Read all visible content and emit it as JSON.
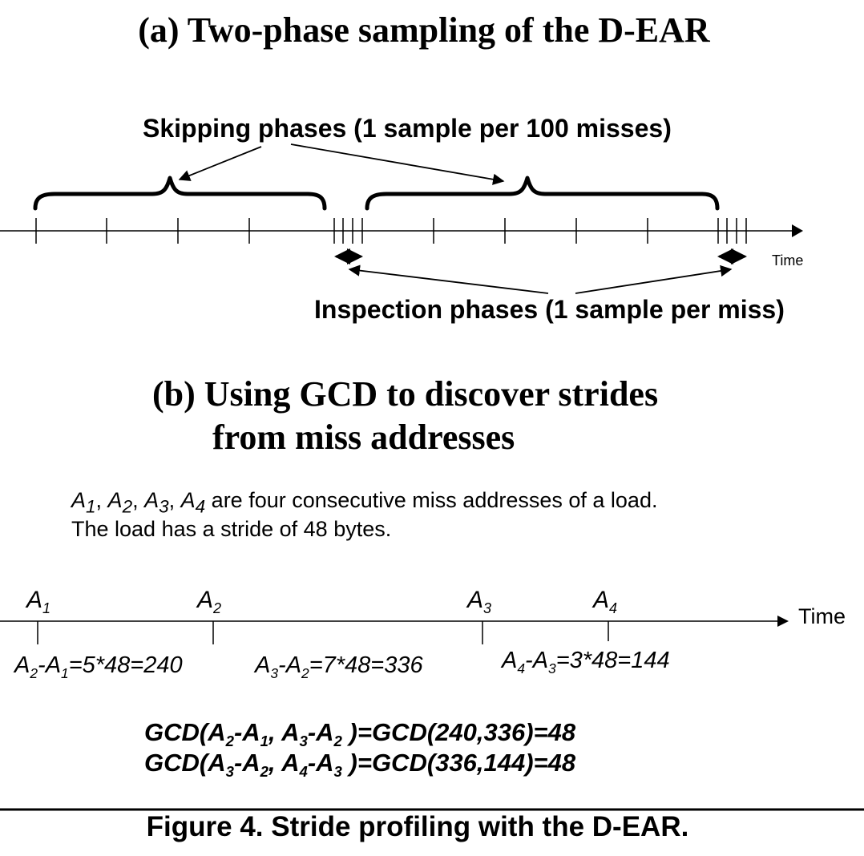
{
  "part_a": {
    "title": "(a) Two-phase sampling of the D-EAR",
    "skipping_label": "Skipping phases (1 sample per 100 misses)",
    "inspection_label": "Inspection phases (1 sample per miss)",
    "time_label": "Time"
  },
  "part_b": {
    "title_line1": "(b) Using GCD to discover strides",
    "title_line2": "from miss addresses",
    "description_line1_suffix": " are four consecutive miss addresses of a load.",
    "description_line2": "The load has a stride of 48 bytes.",
    "time_label": "Time",
    "addresses": [
      {
        "letter": "A",
        "sub": "1"
      },
      {
        "letter": "A",
        "sub": "2"
      },
      {
        "letter": "A",
        "sub": "3"
      },
      {
        "letter": "A",
        "sub": "4"
      }
    ],
    "differences": [
      {
        "value": "=5*48=240"
      },
      {
        "value": "=7*48=336"
      },
      {
        "value": "=3*48=144"
      }
    ],
    "gcd_lines": [
      {
        "result": ")=GCD(240,336)=48"
      },
      {
        "result": ")=GCD(336,144)=48"
      }
    ]
  },
  "caption": "Figure 4. Stride profiling with the D-EAR."
}
